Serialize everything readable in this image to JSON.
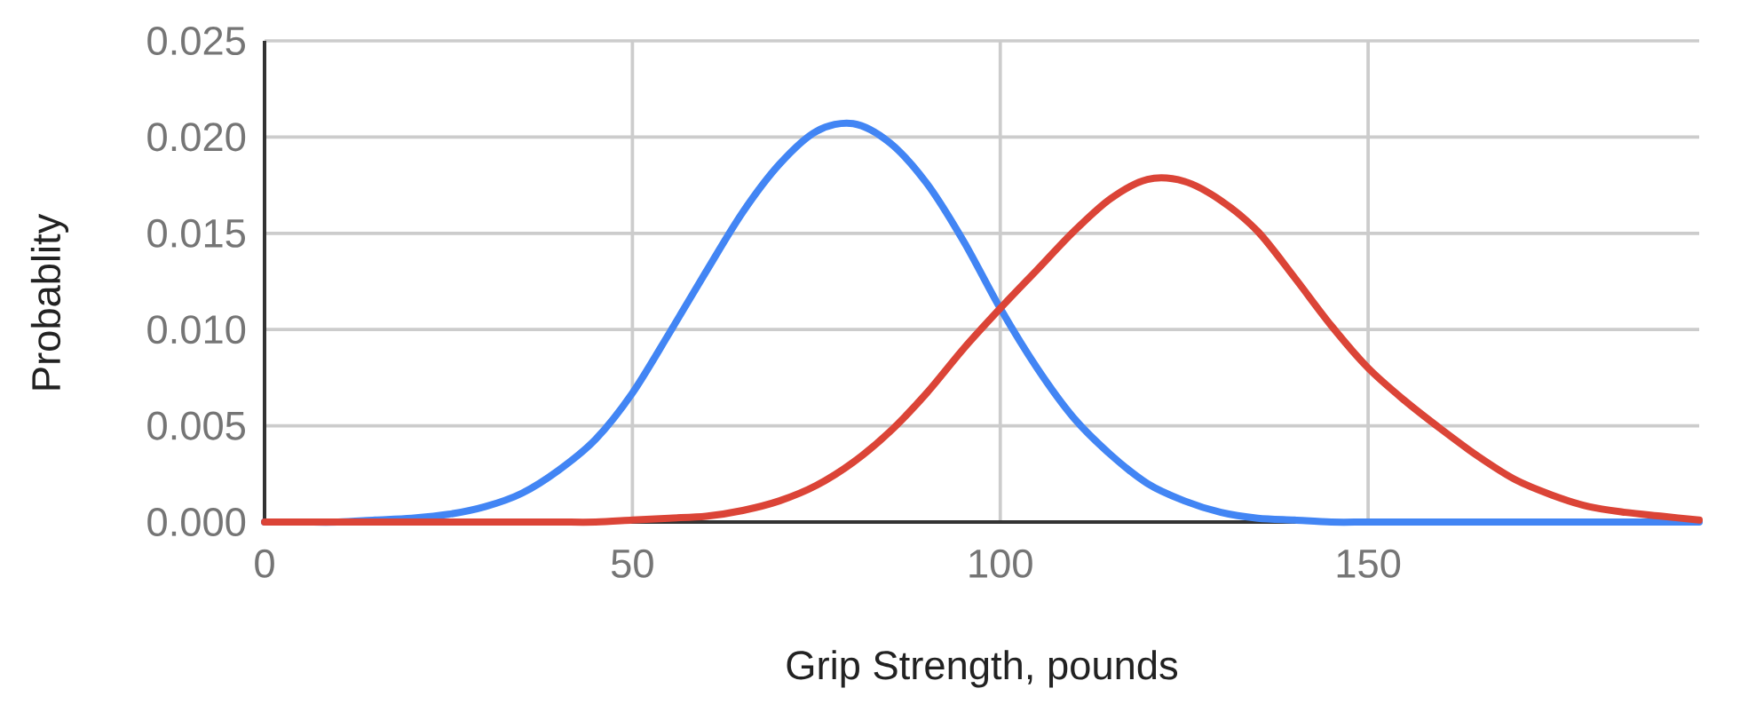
{
  "chart_data": {
    "type": "line",
    "xlabel": "Grip Strength, pounds",
    "ylabel": "Probablity",
    "x": [
      0,
      5,
      10,
      15,
      20,
      25,
      30,
      35,
      40,
      45,
      50,
      55,
      60,
      65,
      70,
      75,
      80,
      85,
      90,
      95,
      100,
      105,
      110,
      115,
      120,
      125,
      130,
      135,
      140,
      145,
      150,
      155,
      160,
      165,
      170,
      175,
      180,
      185,
      190,
      195
    ],
    "series": [
      {
        "color": "#4285f4",
        "values": [
          0,
          0,
          0,
          0.0001,
          0.0002,
          0.0004,
          0.0008,
          0.0015,
          0.0027,
          0.0043,
          0.0067,
          0.0098,
          0.013,
          0.0161,
          0.0186,
          0.0203,
          0.0207,
          0.0197,
          0.0176,
          0.0146,
          0.0111,
          0.008,
          0.0054,
          0.0035,
          0.002,
          0.0011,
          0.0005,
          0.0002,
          0.0001,
          0,
          0,
          0,
          0,
          0,
          0,
          0,
          0,
          0,
          0,
          0
        ]
      },
      {
        "color": "#db4437",
        "values": [
          0,
          0,
          0,
          0,
          0,
          0,
          0,
          0,
          0,
          0,
          0.0001,
          0.0002,
          0.0003,
          0.0006,
          0.0011,
          0.0019,
          0.0031,
          0.0047,
          0.0067,
          0.009,
          0.0111,
          0.0131,
          0.0151,
          0.0168,
          0.0178,
          0.0177,
          0.0167,
          0.0151,
          0.0127,
          0.0102,
          0.008,
          0.0063,
          0.0048,
          0.0034,
          0.0022,
          0.0014,
          0.0008,
          0.0005,
          0.0003,
          0.0001
        ]
      }
    ],
    "xlim": [
      0,
      195
    ],
    "ylim": [
      0,
      0.025
    ],
    "xticks": [
      0,
      50,
      100,
      150
    ],
    "yticks": [
      {
        "value": 0,
        "label": "0.000"
      },
      {
        "value": 0.005,
        "label": "0.005"
      },
      {
        "value": 0.01,
        "label": "0.010"
      },
      {
        "value": 0.015,
        "label": "0.015"
      },
      {
        "value": 0.02,
        "label": "0.020"
      },
      {
        "value": 0.025,
        "label": "0.025"
      }
    ],
    "grid": true
  }
}
